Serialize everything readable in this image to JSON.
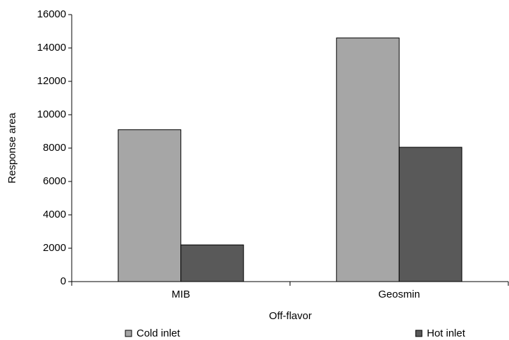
{
  "chart_data": {
    "type": "bar",
    "x_label": "Off-flavor",
    "y_label": "Response area",
    "categories": [
      "MIB",
      "Geosmin"
    ],
    "series": [
      {
        "name": "Cold inlet",
        "color": "#a6a6a6",
        "values": [
          9100,
          14600
        ]
      },
      {
        "name": "Hot inlet",
        "color": "#595959",
        "values": [
          2200,
          8050
        ]
      }
    ],
    "ylim": [
      0,
      16000
    ],
    "yticks": [
      0,
      2000,
      4000,
      6000,
      8000,
      10000,
      12000,
      14000,
      16000
    ]
  }
}
